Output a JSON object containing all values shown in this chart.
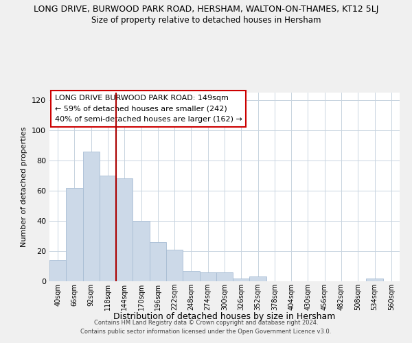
{
  "title_top": "LONG DRIVE, BURWOOD PARK ROAD, HERSHAM, WALTON-ON-THAMES, KT12 5LJ",
  "title_sub": "Size of property relative to detached houses in Hersham",
  "xlabel": "Distribution of detached houses by size in Hersham",
  "ylabel": "Number of detached properties",
  "bar_labels": [
    "40sqm",
    "66sqm",
    "92sqm",
    "118sqm",
    "144sqm",
    "170sqm",
    "196sqm",
    "222sqm",
    "248sqm",
    "274sqm",
    "300sqm",
    "326sqm",
    "352sqm",
    "378sqm",
    "404sqm",
    "430sqm",
    "456sqm",
    "482sqm",
    "508sqm",
    "534sqm",
    "560sqm"
  ],
  "bar_values": [
    14,
    62,
    86,
    70,
    68,
    40,
    26,
    21,
    7,
    6,
    6,
    2,
    3,
    0,
    0,
    0,
    0,
    0,
    0,
    2,
    0
  ],
  "bar_color": "#ccd9e8",
  "bar_edge_color": "#a8bdd4",
  "vline_x": 3.5,
  "vline_color": "#aa0000",
  "ylim": [
    0,
    125
  ],
  "yticks": [
    0,
    20,
    40,
    60,
    80,
    100,
    120
  ],
  "annotation_line1": "LONG DRIVE BURWOOD PARK ROAD: 149sqm",
  "annotation_line2": "← 59% of detached houses are smaller (242)",
  "annotation_line3": "40% of semi-detached houses are larger (162) →",
  "footer1": "Contains HM Land Registry data © Crown copyright and database right 2024.",
  "footer2": "Contains public sector information licensed under the Open Government Licence v3.0.",
  "bg_color": "#f0f0f0",
  "plot_bg_color": "#ffffff",
  "grid_color": "#c8d4e0"
}
